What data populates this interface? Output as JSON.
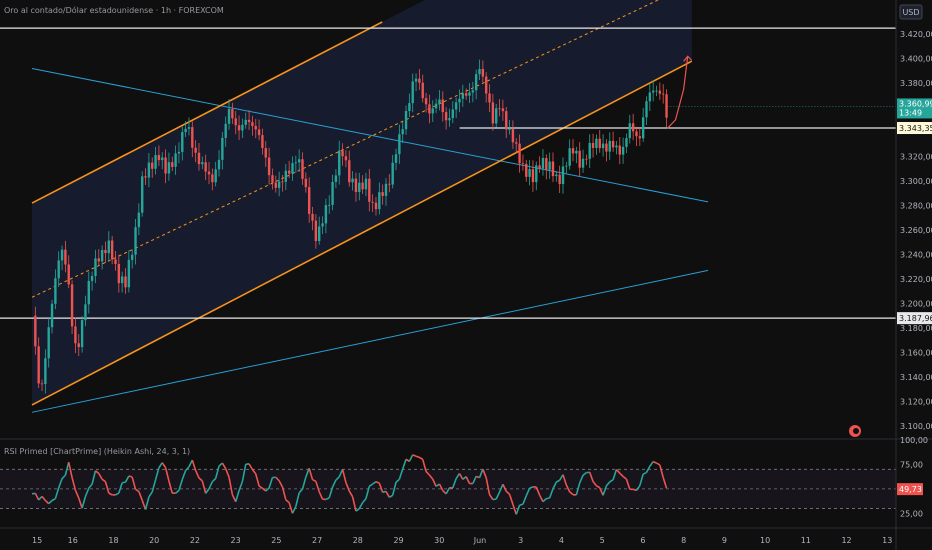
{
  "header": {
    "symbol_title": "Oro al contado/Dólar estadounidense · 1h · FOREXCOM",
    "currency_button": "USD"
  },
  "colors": {
    "up": "#26a69a",
    "down": "#ef5350",
    "channel": "#f7931a",
    "trend": "#2a9fd6",
    "level": "#e8e8e8",
    "rsi": "#7e57c2"
  },
  "chart_data": [
    {
      "type": "candlestick",
      "title": "Oro al contado/Dólar estadounidense · 1h · FOREXCOM",
      "ylim": [
        3090,
        3430
      ],
      "y_ticks": [
        "3.420,00",
        "3.400,00",
        "3.380,00",
        "3.360,00",
        "3.340,00",
        "3.320,00",
        "3.300,00",
        "3.280,00",
        "3.260,00",
        "3.240,00",
        "3.220,00",
        "3.200,00",
        "3.180,00",
        "3.160,00",
        "3.140,00",
        "3.120,00",
        "3.100,00"
      ],
      "y_tick_values": [
        3420,
        3400,
        3380,
        3360,
        3340,
        3320,
        3300,
        3280,
        3260,
        3240,
        3220,
        3200,
        3180,
        3160,
        3140,
        3120,
        3100
      ],
      "x_ticks": [
        "15",
        "16",
        "18",
        "20",
        "22",
        "23",
        "25",
        "27",
        "28",
        "29",
        "30",
        "Jun",
        "3",
        "4",
        "5",
        "6",
        "8",
        "9",
        "10",
        "11",
        "12",
        "13"
      ],
      "x_tick_values": [
        0,
        1,
        2,
        3,
        4,
        5,
        6,
        7,
        8,
        9,
        10,
        11,
        12,
        13,
        14,
        15,
        16,
        17,
        18,
        19,
        20,
        21
      ],
      "price_path": [
        [
          0,
          3190
        ],
        [
          0.2,
          3125
        ],
        [
          0.4,
          3175
        ],
        [
          0.7,
          3250
        ],
        [
          0.85,
          3230
        ],
        [
          1.0,
          3175
        ],
        [
          1.1,
          3160
        ],
        [
          1.3,
          3200
        ],
        [
          1.6,
          3240
        ],
        [
          1.9,
          3245
        ],
        [
          2.1,
          3225
        ],
        [
          2.3,
          3215
        ],
        [
          2.5,
          3250
        ],
        [
          2.7,
          3300
        ],
        [
          2.9,
          3310
        ],
        [
          3.1,
          3325
        ],
        [
          3.3,
          3305
        ],
        [
          3.5,
          3320
        ],
        [
          3.8,
          3345
        ],
        [
          4.0,
          3325
        ],
        [
          4.2,
          3310
        ],
        [
          4.4,
          3300
        ],
        [
          4.6,
          3320
        ],
        [
          4.85,
          3360
        ],
        [
          5.1,
          3340
        ],
        [
          5.3,
          3350
        ],
        [
          5.5,
          3345
        ],
        [
          5.7,
          3320
        ],
        [
          5.9,
          3300
        ],
        [
          6.1,
          3295
        ],
        [
          6.3,
          3310
        ],
        [
          6.5,
          3320
        ],
        [
          6.7,
          3295
        ],
        [
          6.9,
          3265
        ],
        [
          7.0,
          3250
        ],
        [
          7.2,
          3275
        ],
        [
          7.4,
          3300
        ],
        [
          7.6,
          3325
        ],
        [
          7.8,
          3305
        ],
        [
          8.0,
          3290
        ],
        [
          8.2,
          3300
        ],
        [
          8.4,
          3275
        ],
        [
          8.6,
          3290
        ],
        [
          8.8,
          3305
        ],
        [
          9.0,
          3330
        ],
        [
          9.2,
          3360
        ],
        [
          9.4,
          3385
        ],
        [
          9.6,
          3370
        ],
        [
          9.8,
          3355
        ],
        [
          10.0,
          3365
        ],
        [
          10.2,
          3350
        ],
        [
          10.4,
          3360
        ],
        [
          10.6,
          3375
        ],
        [
          10.8,
          3370
        ],
        [
          11.0,
          3395
        ],
        [
          11.2,
          3370
        ],
        [
          11.3,
          3345
        ],
        [
          11.5,
          3365
        ],
        [
          11.7,
          3340
        ],
        [
          11.9,
          3325
        ],
        [
          12.1,
          3310
        ],
        [
          12.3,
          3300
        ],
        [
          12.5,
          3320
        ],
        [
          12.7,
          3310
        ],
        [
          12.9,
          3300
        ],
        [
          13.1,
          3315
        ],
        [
          13.3,
          3325
        ],
        [
          13.5,
          3315
        ],
        [
          13.7,
          3325
        ],
        [
          13.9,
          3335
        ],
        [
          14.1,
          3325
        ],
        [
          14.3,
          3330
        ],
        [
          14.5,
          3325
        ],
        [
          14.7,
          3345
        ],
        [
          14.9,
          3335
        ],
        [
          15.1,
          3365
        ],
        [
          15.3,
          3378
        ],
        [
          15.5,
          3370
        ],
        [
          15.6,
          3343
        ]
      ],
      "projection_path": [
        [
          15.6,
          3343
        ],
        [
          15.8,
          3350
        ],
        [
          16.0,
          3375
        ],
        [
          16.1,
          3402
        ]
      ],
      "horizontal_levels": [
        {
          "price": 3425,
          "label": ""
        },
        {
          "price": 3343.35,
          "label": "3.343,35"
        },
        {
          "price": 3187.96,
          "label": "3.187,96"
        }
      ],
      "current_price": {
        "value": "3.360,99",
        "countdown": "13:49",
        "price": 3360.99
      },
      "channel_lines": [
        {
          "from": [
            0,
            3282
          ],
          "to": [
            8.6,
            3430
          ],
          "style": "solid"
        },
        {
          "from": [
            0,
            3205
          ],
          "to": [
            17.4,
            3480
          ],
          "style": "dashed"
        },
        {
          "from": [
            0,
            3117
          ],
          "to": [
            16.2,
            3398
          ],
          "style": "solid"
        }
      ],
      "trend_lines": [
        {
          "from": [
            0,
            3392
          ],
          "to": [
            16.6,
            3283
          ]
        },
        {
          "from": [
            0,
            3111
          ],
          "to": [
            16.6,
            3227
          ]
        }
      ]
    },
    {
      "type": "line",
      "title": "RSI Primed [ChartPrime] (Heikin Ashi, 24, 3, 1)",
      "ylim": [
        10,
        100
      ],
      "y_ticks": [
        "100,00",
        "75,00",
        "50,00",
        "25,00"
      ],
      "y_tick_values": [
        100,
        75,
        50,
        25
      ],
      "bands": [
        70,
        50,
        30
      ],
      "current": {
        "value": "49,73",
        "level": 49.73
      },
      "rsi_path": [
        [
          0,
          45
        ],
        [
          0.5,
          35
        ],
        [
          0.9,
          75
        ],
        [
          1.2,
          30
        ],
        [
          1.6,
          70
        ],
        [
          2.0,
          40
        ],
        [
          2.4,
          65
        ],
        [
          2.8,
          30
        ],
        [
          3.2,
          80
        ],
        [
          3.5,
          40
        ],
        [
          3.9,
          80
        ],
        [
          4.3,
          45
        ],
        [
          4.7,
          80
        ],
        [
          5.0,
          35
        ],
        [
          5.3,
          80
        ],
        [
          5.7,
          45
        ],
        [
          6.0,
          65
        ],
        [
          6.4,
          25
        ],
        [
          6.8,
          70
        ],
        [
          7.2,
          35
        ],
        [
          7.6,
          70
        ],
        [
          8.0,
          25
        ],
        [
          8.4,
          60
        ],
        [
          8.8,
          40
        ],
        [
          9.2,
          80
        ],
        [
          9.5,
          85
        ],
        [
          9.8,
          60
        ],
        [
          10.2,
          45
        ],
        [
          10.5,
          65
        ],
        [
          10.8,
          55
        ],
        [
          11.1,
          70
        ],
        [
          11.3,
          35
        ],
        [
          11.6,
          55
        ],
        [
          11.9,
          25
        ],
        [
          12.3,
          55
        ],
        [
          12.6,
          35
        ],
        [
          13.0,
          65
        ],
        [
          13.3,
          40
        ],
        [
          13.6,
          70
        ],
        [
          14.0,
          45
        ],
        [
          14.4,
          70
        ],
        [
          14.8,
          45
        ],
        [
          15.1,
          70
        ],
        [
          15.35,
          80
        ],
        [
          15.6,
          50
        ]
      ]
    }
  ]
}
